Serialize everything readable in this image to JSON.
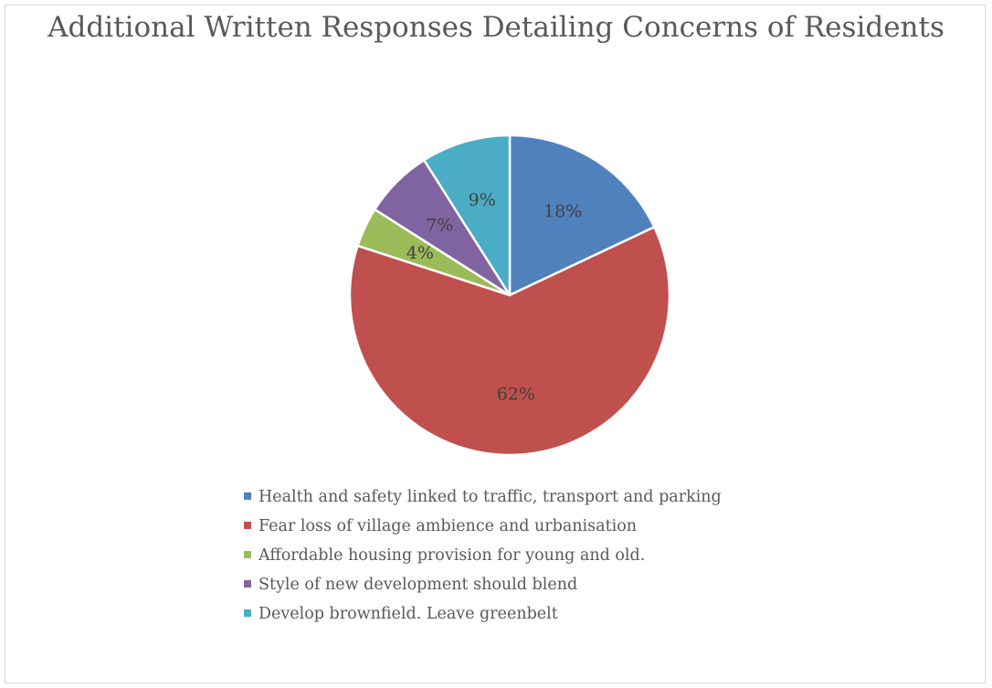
{
  "chart_data": {
    "type": "pie",
    "title": "Additional Written Responses Detailing Concerns of Residents",
    "legend_position": "bottom",
    "start_angle_deg": 0,
    "direction": "clockwise",
    "slices": [
      {
        "label": "Health and safety linked to traffic, transport and parking",
        "value": 18,
        "data_label": "18%",
        "color": "#4f81bd"
      },
      {
        "label": "Fear loss of village ambience and urbanisation",
        "value": 62,
        "data_label": "62%",
        "color": "#c0504d"
      },
      {
        "label": "Affordable housing provision for young and old.",
        "value": 4,
        "data_label": "4%",
        "color": "#9bbb59"
      },
      {
        "label": "Style of new development should blend",
        "value": 7,
        "data_label": "7%",
        "color": "#8064a2"
      },
      {
        "label": "Develop brownfield.  Leave greenbelt",
        "value": 9,
        "data_label": "9%",
        "color": "#4bacc6"
      }
    ]
  }
}
